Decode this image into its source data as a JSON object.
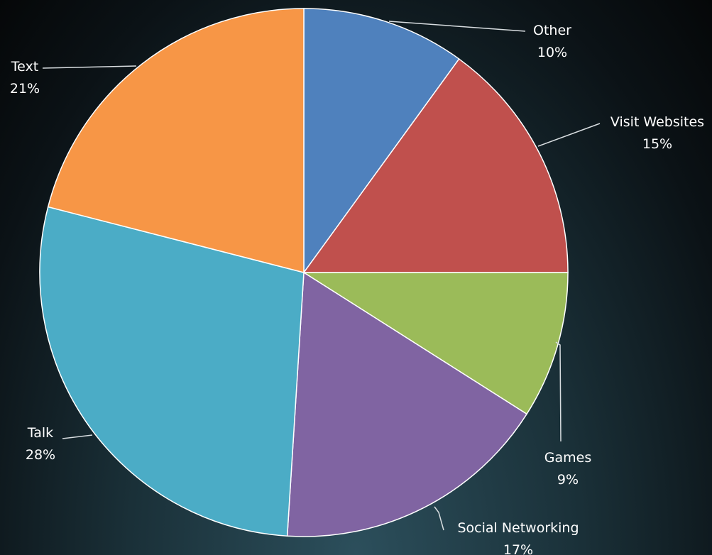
{
  "chart_data": {
    "type": "pie",
    "title": "",
    "start_angle_deg": 0,
    "direction": "clockwise",
    "slices": [
      {
        "label": "Other",
        "value": 10,
        "value_label": "10%",
        "color": "#4f81bd"
      },
      {
        "label": "Visit Websites",
        "value": 15,
        "value_label": "15%",
        "color": "#c0504d"
      },
      {
        "label": "Games",
        "value": 9,
        "value_label": "9%",
        "color": "#9bbb59"
      },
      {
        "label": "Social Networking",
        "value": 17,
        "value_label": "17%",
        "color": "#8064a2"
      },
      {
        "label": "Talk",
        "value": 28,
        "value_label": "28%",
        "color": "#4bacc6"
      },
      {
        "label": "Text",
        "value": 21,
        "value_label": "21%",
        "color": "#f79646"
      }
    ]
  }
}
